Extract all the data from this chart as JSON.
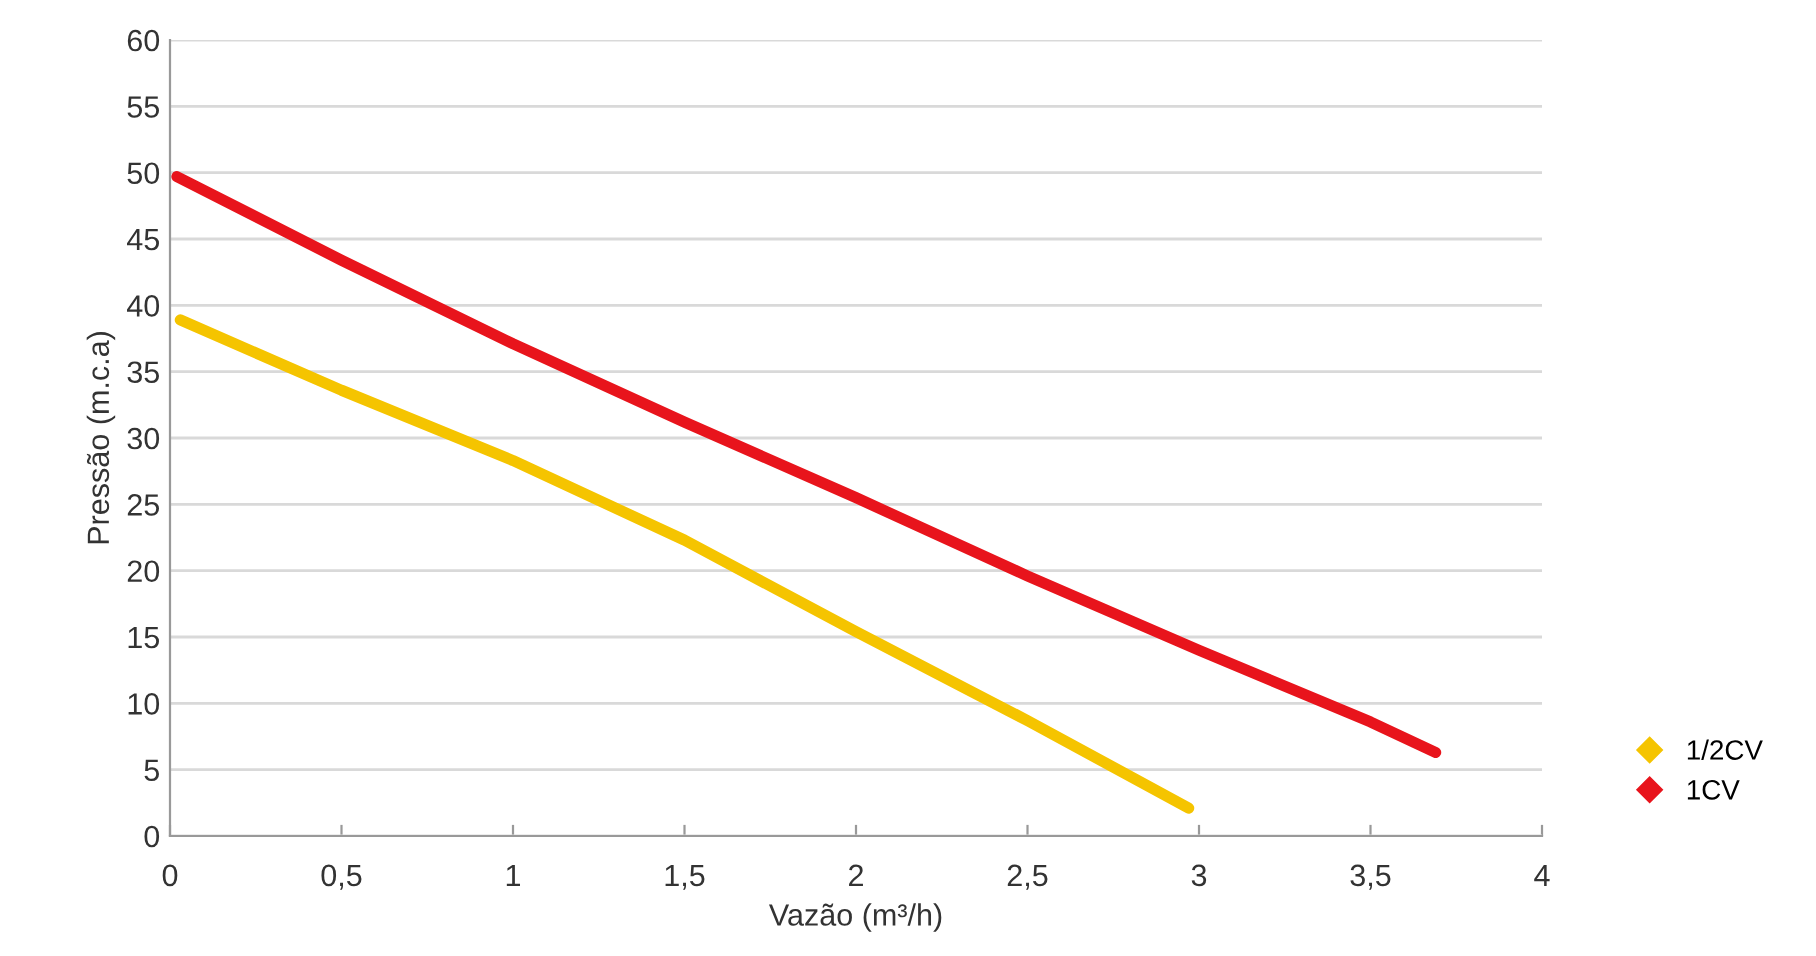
{
  "chart_data": {
    "type": "line",
    "xlabel": "Vazão (m³/h)",
    "ylabel": "Pressão (m.c.a)",
    "xlim": [
      0,
      4
    ],
    "ylim": [
      0,
      60
    ],
    "xticks": [
      0,
      {
        "value": 0.5,
        "label": "0,5"
      },
      1,
      {
        "value": 1.5,
        "label": "1,5"
      },
      2,
      {
        "value": 2.5,
        "label": "2,5"
      },
      3,
      {
        "value": 3.5,
        "label": "3,5"
      },
      4
    ],
    "yticks": [
      0,
      5,
      10,
      15,
      20,
      25,
      30,
      35,
      40,
      45,
      50,
      55,
      60
    ],
    "grid": "y",
    "legend": "right",
    "marker": "none",
    "line_style": "solid",
    "series": [
      {
        "name": "1/2CV",
        "color": "#f5c400",
        "x": [
          0.03,
          0.5,
          1,
          1.5,
          2,
          2.5,
          2.97
        ],
        "values": [
          38.9,
          33.6,
          28.3,
          22.3,
          15.4,
          8.7,
          2.1
        ]
      },
      {
        "name": "1CV",
        "color": "#e8141c",
        "x": [
          0.02,
          0.5,
          1,
          1.5,
          2,
          2.5,
          3,
          3.5,
          3.69
        ],
        "values": [
          49.7,
          43.4,
          37.1,
          31.2,
          25.5,
          19.6,
          14.0,
          8.6,
          6.3
        ]
      }
    ]
  }
}
